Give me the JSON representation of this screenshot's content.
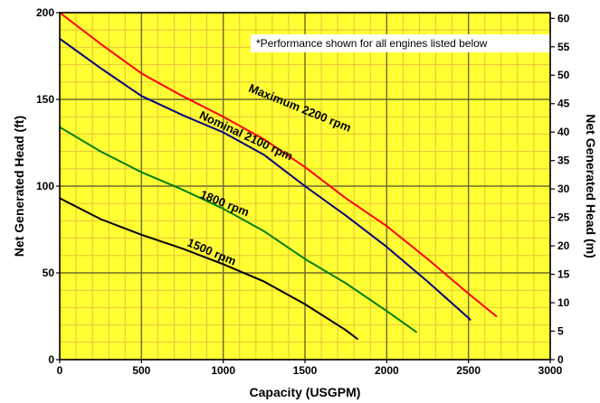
{
  "chart_data": {
    "type": "line",
    "xlabel": "Capacity (USGPM)",
    "ylabel_left": "Net Generated Head  (ft)",
    "ylabel_right": "Net Generated Head  (m)",
    "note": "*Performance shown for all engines listed below",
    "xlim": [
      0,
      3000
    ],
    "ylim_left": [
      0,
      200
    ],
    "ylim_right": [
      0,
      61
    ],
    "x_ticks": [
      0,
      500,
      1000,
      1500,
      2000,
      2500,
      3000
    ],
    "x_tick_labels": [
      "0",
      "500",
      "1000",
      "1500",
      "2000",
      "2500",
      "3000"
    ],
    "y_left_ticks": [
      0,
      50,
      100,
      150,
      200
    ],
    "y_left_tick_labels": [
      "0",
      "50",
      "100",
      "150",
      "200"
    ],
    "y_right_ticks": [
      0,
      5,
      10,
      15,
      20,
      25,
      30,
      35,
      40,
      45,
      50,
      55,
      60
    ],
    "y_right_tick_labels": [
      "0",
      "5",
      "10",
      "15",
      "20",
      "25",
      "30",
      "35",
      "40",
      "45",
      "50",
      "55",
      "60"
    ],
    "grid": true,
    "colors": {
      "background": "#ffff33",
      "minor_grid": "#e8c23a",
      "major_grid": "#6e6a2a",
      "frame": "#000000"
    },
    "series": [
      {
        "name": "Maximum  2200 rpm",
        "color": "#ff0000",
        "x": [
          0,
          250,
          500,
          750,
          1000,
          1250,
          1500,
          1750,
          2000,
          2250,
          2500,
          2670
        ],
        "y": [
          200,
          182,
          165,
          152,
          140,
          127,
          111,
          93,
          77,
          58,
          38,
          25
        ]
      },
      {
        "name": "Nominal 2100 rpm",
        "color": "#000080",
        "x": [
          0,
          250,
          500,
          750,
          1000,
          1250,
          1500,
          1750,
          2000,
          2250,
          2500,
          2510
        ],
        "y": [
          185,
          168,
          152,
          141,
          131,
          118,
          100,
          83,
          65,
          45,
          24,
          23
        ]
      },
      {
        "name": "1800 rpm",
        "color": "#008000",
        "x": [
          0,
          250,
          500,
          750,
          1000,
          1250,
          1500,
          1750,
          2000,
          2180
        ],
        "y": [
          134,
          120,
          108,
          98,
          87,
          74,
          58,
          44,
          28,
          16
        ]
      },
      {
        "name": "1500 rpm",
        "color": "#000000",
        "x": [
          0,
          250,
          500,
          750,
          1000,
          1250,
          1500,
          1750,
          1820
        ],
        "y": [
          93,
          81,
          72,
          64,
          55,
          45,
          32,
          17,
          12
        ]
      }
    ],
    "curve_labels": [
      {
        "text": "Maximum  2200 rpm",
        "x": 1460,
        "y": 143,
        "angle": 22
      },
      {
        "text": "Nominal 2100 rpm",
        "x": 1130,
        "y": 127,
        "angle": 25
      },
      {
        "text": "1800 rpm",
        "x": 1000,
        "y": 88,
        "angle": 22
      },
      {
        "text": "1500 rpm",
        "x": 920,
        "y": 60,
        "angle": 23
      }
    ]
  }
}
